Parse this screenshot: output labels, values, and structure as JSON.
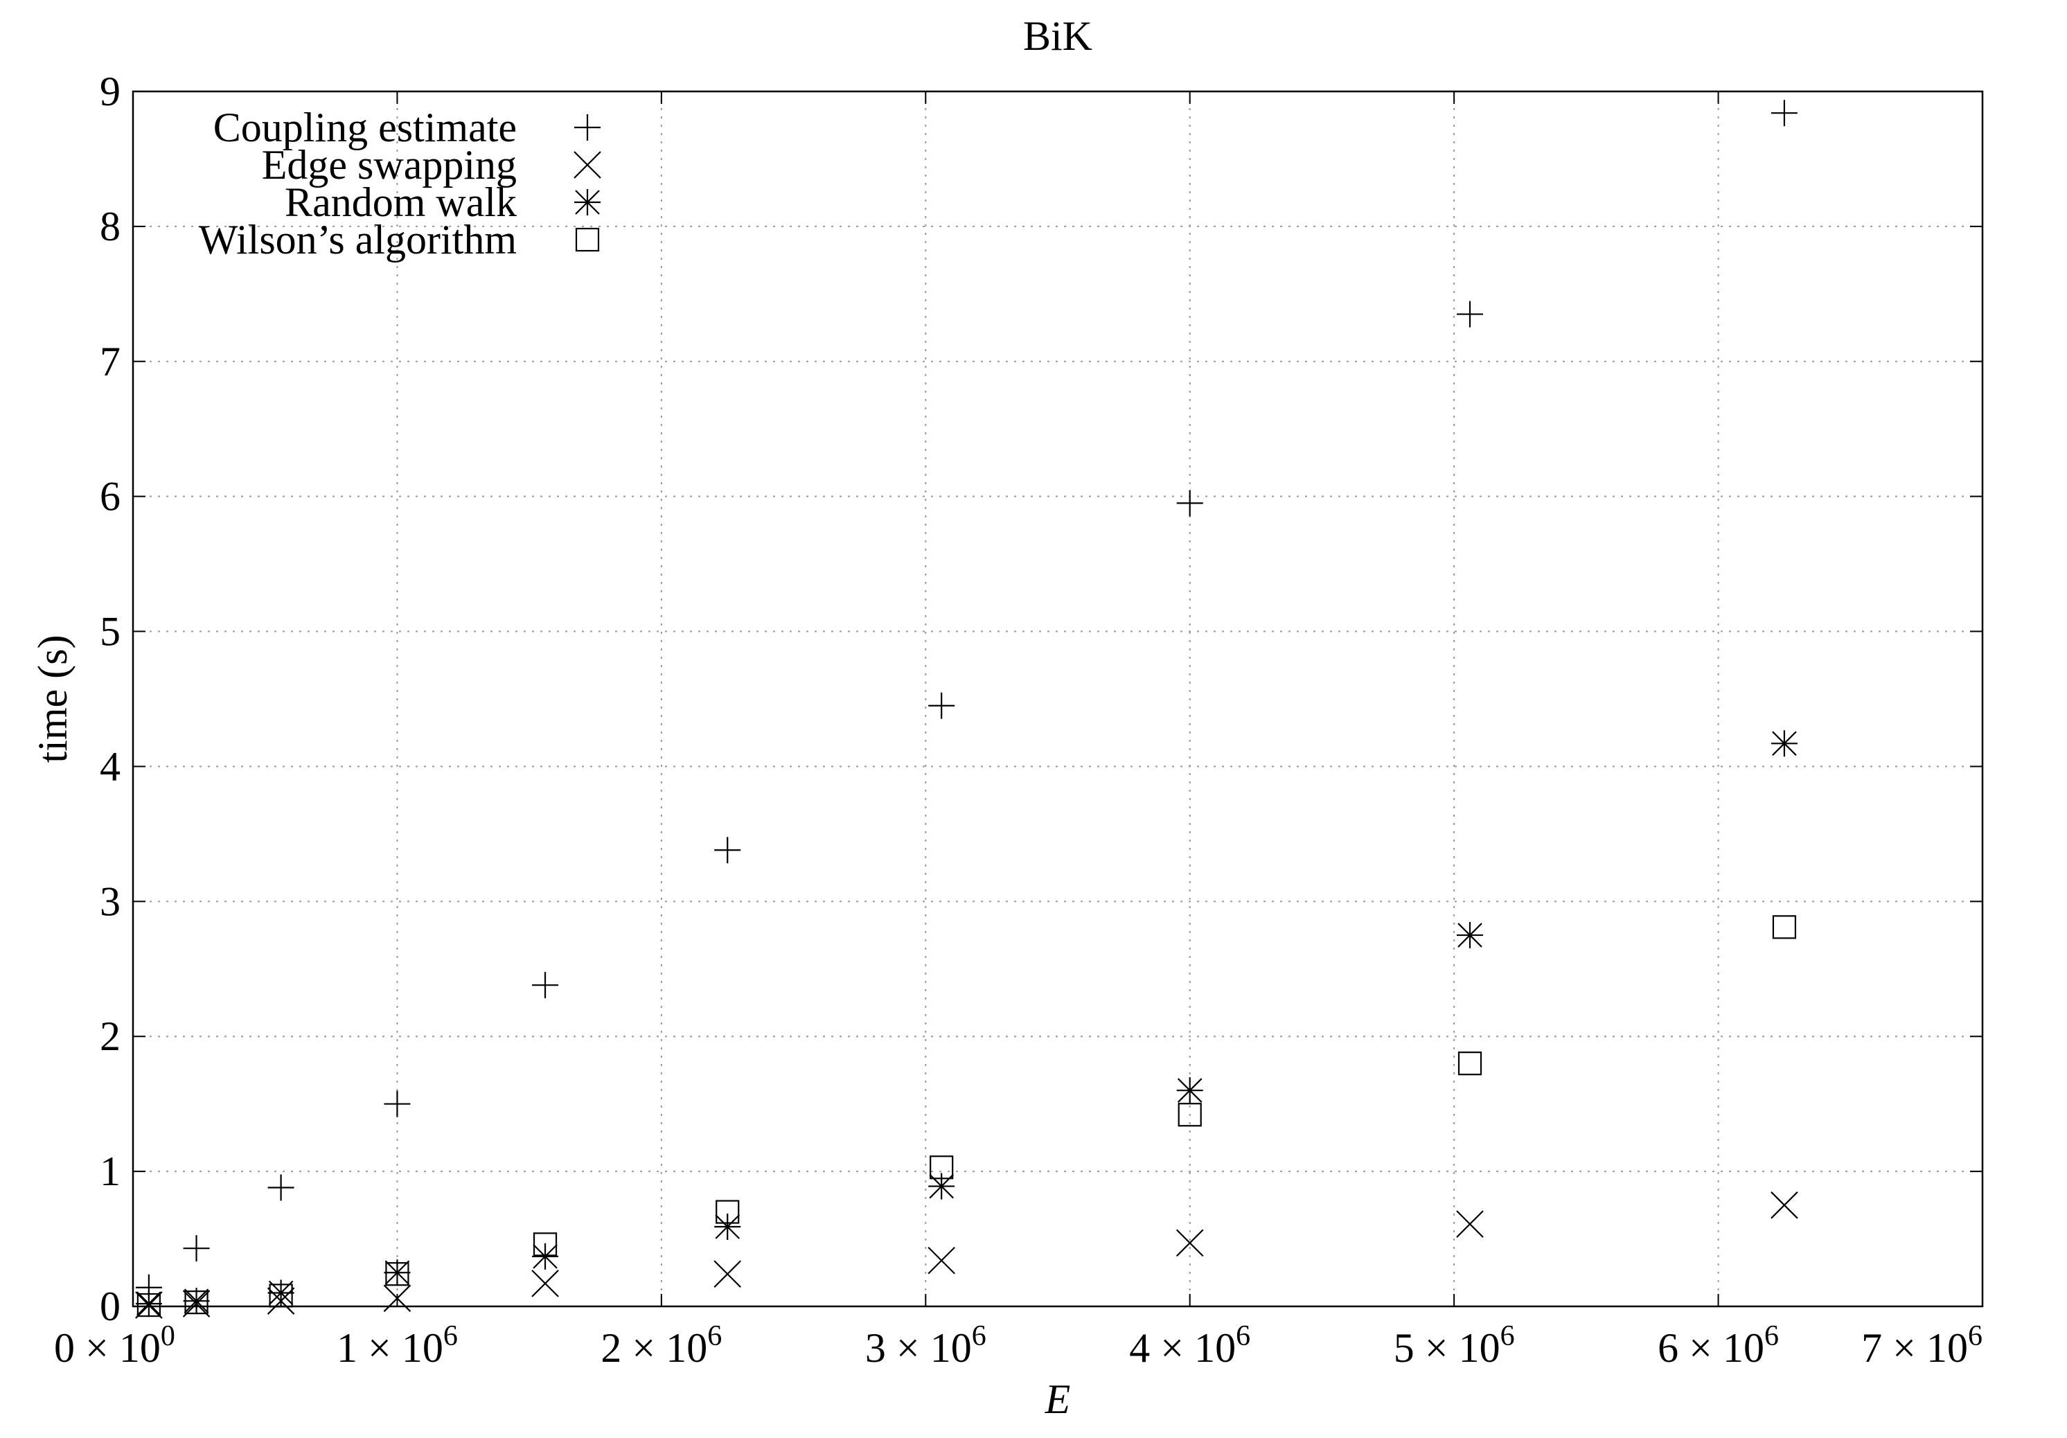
{
  "chart_data": {
    "type": "scatter",
    "title": "BiK",
    "xlabel": "E",
    "ylabel": "time (s)",
    "xlim": [
      0,
      7000000
    ],
    "ylim": [
      0,
      9
    ],
    "grid": true,
    "legend_position": "top-left",
    "x_ticks": [
      {
        "value": 0,
        "mantissa": "0",
        "exponent": "0"
      },
      {
        "value": 1000000,
        "mantissa": "1",
        "exponent": "6"
      },
      {
        "value": 2000000,
        "mantissa": "2",
        "exponent": "6"
      },
      {
        "value": 3000000,
        "mantissa": "3",
        "exponent": "6"
      },
      {
        "value": 4000000,
        "mantissa": "4",
        "exponent": "6"
      },
      {
        "value": 5000000,
        "mantissa": "5",
        "exponent": "6"
      },
      {
        "value": 6000000,
        "mantissa": "6",
        "exponent": "6"
      },
      {
        "value": 7000000,
        "mantissa": "7",
        "exponent": "6"
      }
    ],
    "x_tick_times": "×",
    "x_tick_base": "10",
    "y_ticks": [
      "0",
      "1",
      "2",
      "3",
      "4",
      "5",
      "6",
      "7",
      "8",
      "9"
    ],
    "x": [
      60000,
      240000,
      560000,
      1000000,
      1560000,
      2250000,
      3060000,
      4000000,
      5060000,
      6250000
    ],
    "series": [
      {
        "name": "Coupling estimate",
        "marker": "plus",
        "values": [
          0.14,
          0.43,
          0.88,
          1.5,
          2.38,
          3.38,
          4.45,
          5.95,
          7.35,
          8.84
        ]
      },
      {
        "name": "Edge swapping",
        "marker": "cross",
        "values": [
          0.01,
          0.02,
          0.04,
          0.06,
          0.17,
          0.24,
          0.34,
          0.47,
          0.61,
          0.75
        ]
      },
      {
        "name": "Random walk",
        "marker": "star",
        "values": [
          0.02,
          0.04,
          0.1,
          0.25,
          0.37,
          0.59,
          0.89,
          1.6,
          2.75,
          4.17
        ]
      },
      {
        "name": "Wilson’s algorithm",
        "marker": "square",
        "values": [
          0.01,
          0.03,
          0.08,
          0.24,
          0.46,
          0.7,
          1.03,
          1.42,
          1.8,
          2.81
        ]
      }
    ]
  }
}
